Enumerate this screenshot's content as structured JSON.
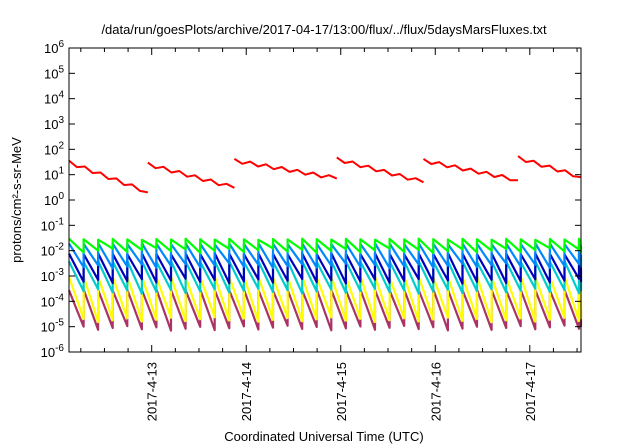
{
  "chart_data": {
    "type": "line",
    "title": "/data/run/goesPlots/archive/2017-04-17/13:00/flux/../flux/5daysMarsFluxes.txt",
    "xlabel": "Coordinated Universal Time (UTC)",
    "ylabel": "protons/cm²-s-sr-MeV",
    "x_range": [
      "2017-04-12T03:00",
      "2017-04-17T13:00"
    ],
    "x_ticks": [
      "2017-4-13",
      "2017-4-14",
      "2017-4-15",
      "2017-4-16",
      "2017-4-17"
    ],
    "y_scale": "log",
    "ylim": [
      1e-06,
      1000000
    ],
    "y_tick_values": [
      1e-06,
      1e-05,
      0.0001,
      0.001,
      0.01,
      0.1,
      1,
      10,
      100,
      1000,
      10000,
      100000,
      1000000
    ],
    "y_ticks": [
      {
        "base": "10",
        "exp": "-6"
      },
      {
        "base": "10",
        "exp": "-5"
      },
      {
        "base": "10",
        "exp": "-4"
      },
      {
        "base": "10",
        "exp": "-3"
      },
      {
        "base": "10",
        "exp": "-2"
      },
      {
        "base": "10",
        "exp": "-1"
      },
      {
        "base": "10",
        "exp": "0"
      },
      {
        "base": "10",
        "exp": "1"
      },
      {
        "base": "10",
        "exp": "2"
      },
      {
        "base": "10",
        "exp": "3"
      },
      {
        "base": "10",
        "exp": "4"
      },
      {
        "base": "10",
        "exp": "5"
      },
      {
        "base": "10",
        "exp": "6"
      }
    ],
    "grid": false,
    "legend": "none",
    "sawtooth_period_hours": 3.7,
    "series": [
      {
        "color": "#ff0000",
        "high": 30,
        "low": 7,
        "line_width": 2,
        "segments": [
          {
            "start": "2017-04-12T03:00",
            "end": "2017-04-12T23:00",
            "high": 30,
            "low": 2
          },
          {
            "start": "2017-04-12T23:00",
            "end": "2017-04-13T21:00",
            "high": 25,
            "low": 3
          },
          {
            "start": "2017-04-13T21:00",
            "end": "2017-04-14T23:00",
            "high": 35,
            "low": 7
          },
          {
            "start": "2017-04-14T23:00",
            "end": "2017-04-15T21:00",
            "high": 40,
            "low": 5
          },
          {
            "start": "2017-04-15T21:00",
            "end": "2017-04-16T21:00",
            "high": 35,
            "low": 6
          },
          {
            "start": "2017-04-16T21:00",
            "end": "2017-04-17T13:00",
            "high": 45,
            "low": 8
          }
        ]
      },
      {
        "color": "#00ff00",
        "high": 0.03,
        "low": 0.008,
        "line_width": 2.2
      },
      {
        "color": "#0088ff",
        "high": 0.02,
        "low": 0.002,
        "line_width": 2.2
      },
      {
        "color": "#0000bb",
        "high": 0.008,
        "low": 0.0005,
        "line_width": 2.2
      },
      {
        "color": "#00cccc",
        "high": 0.004,
        "low": 0.0002,
        "line_width": 2.2
      },
      {
        "color": "#ffff00",
        "high": 0.001,
        "low": 1.5e-05,
        "line_width": 2.2
      },
      {
        "color": "#aa3366",
        "high": 0.0003,
        "low": 7e-06,
        "line_width": 2.2
      }
    ]
  }
}
